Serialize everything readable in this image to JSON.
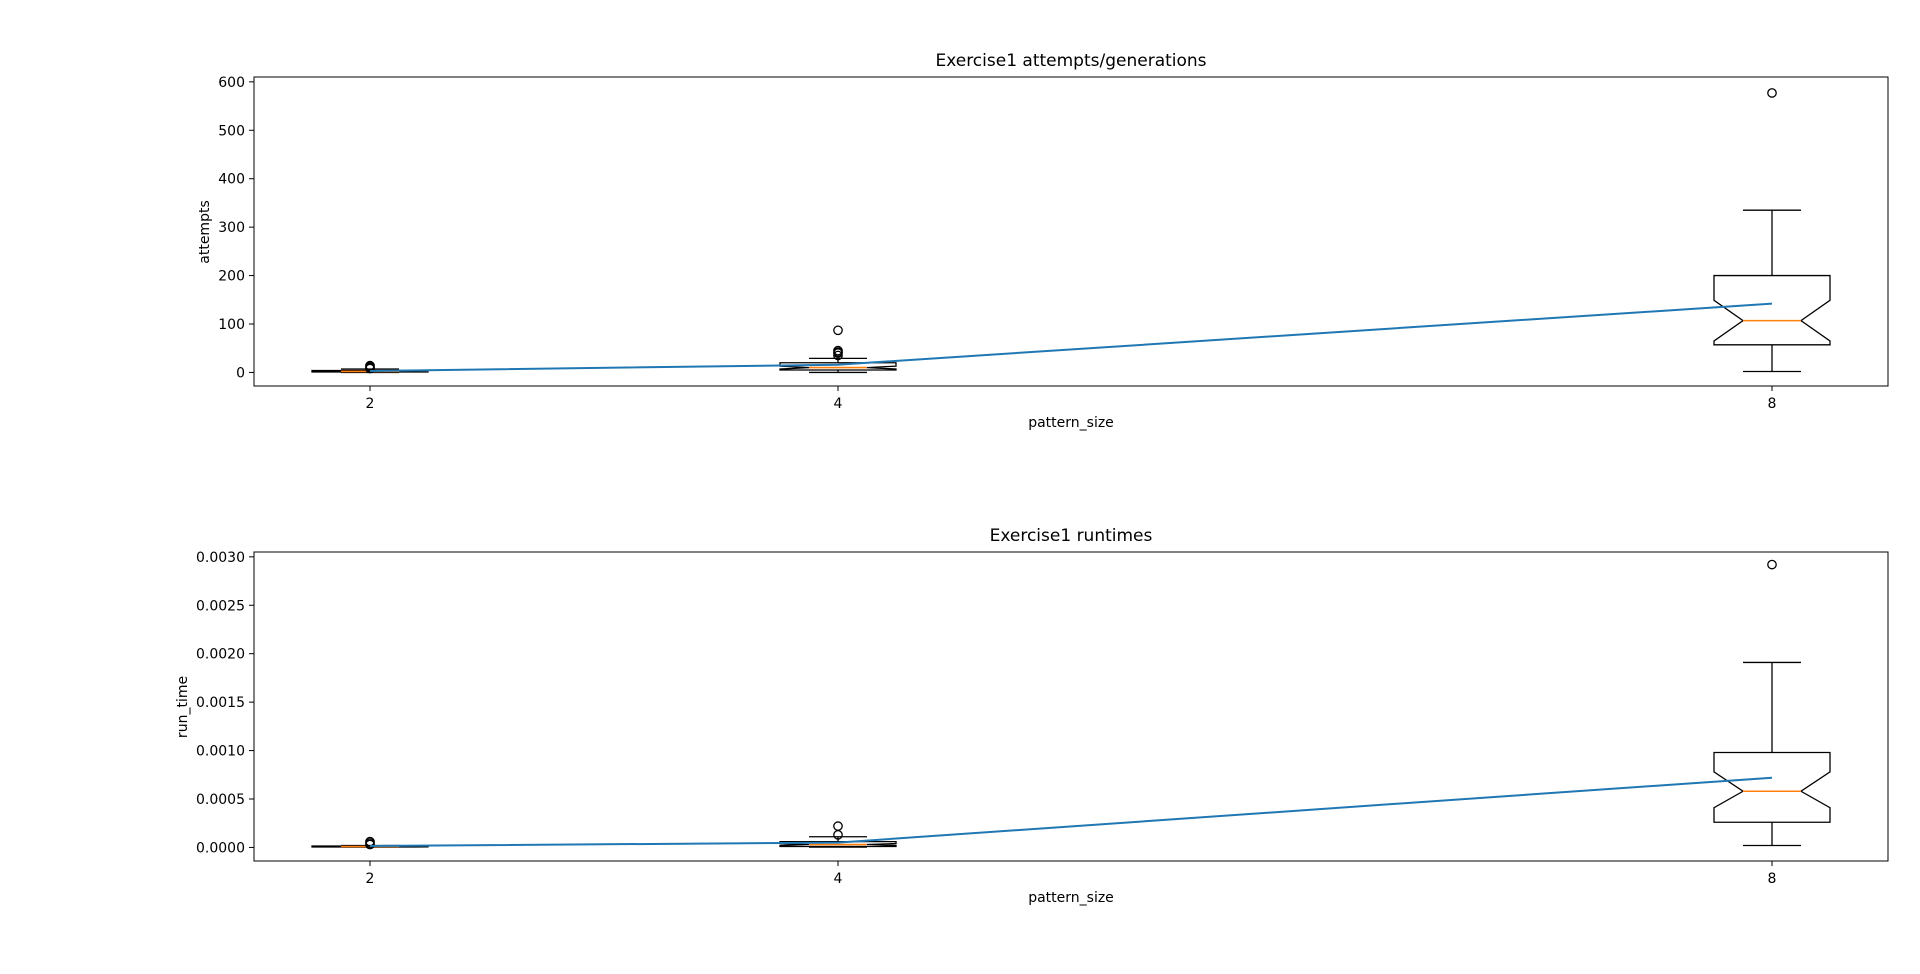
{
  "chart_data": [
    {
      "type": "box",
      "title": "Exercise1 attempts/generations",
      "xlabel": "pattern_size",
      "ylabel": "attempts",
      "categories": [
        "2",
        "4",
        "8"
      ],
      "ylim": [
        -28,
        610
      ],
      "yticks": [
        0,
        100,
        200,
        300,
        400,
        500,
        600
      ],
      "tick_labels": [
        "0",
        "100",
        "200",
        "300",
        "400",
        "500",
        "600"
      ],
      "grid": false,
      "boxes": [
        {
          "category": "2",
          "whislo": 0,
          "q1": 1,
          "median": 2,
          "q3": 4,
          "whishi": 7,
          "notch_lo": 1.6,
          "notch_hi": 2.6,
          "fliers": [
            8,
            10,
            12,
            14
          ]
        },
        {
          "category": "4",
          "whislo": 0,
          "q1": 5,
          "median": 10,
          "q3": 20,
          "whishi": 29,
          "notch_lo": 7,
          "notch_hi": 13,
          "fliers": [
            35,
            40,
            42,
            45,
            87
          ]
        },
        {
          "category": "8",
          "whislo": 2,
          "q1": 57,
          "median": 107,
          "q3": 200,
          "whishi": 335,
          "notch_lo": 65,
          "notch_hi": 149,
          "fliers": [
            577
          ]
        }
      ],
      "series": [
        {
          "values": [
            3,
            16,
            142
          ]
        }
      ]
    },
    {
      "type": "box",
      "title": "Exercise1 runtimes",
      "xlabel": "pattern_size",
      "ylabel": "run_time",
      "categories": [
        "2",
        "4",
        "8"
      ],
      "ylim": [
        -0.00014,
        0.00305
      ],
      "yticks": [
        0,
        0.0005,
        0.001,
        0.0015,
        0.002,
        0.0025,
        0.003
      ],
      "tick_labels": [
        "0.0000",
        "0.0005",
        "0.0010",
        "0.0015",
        "0.0020",
        "0.0025",
        "0.0030"
      ],
      "grid": false,
      "boxes": [
        {
          "category": "2",
          "whislo": 3e-06,
          "q1": 5e-06,
          "median": 9e-06,
          "q3": 1.4e-05,
          "whishi": 2e-05,
          "notch_lo": 7e-06,
          "notch_hi": 1.1e-05,
          "fliers": [
            3e-05,
            4.5e-05,
            6e-05
          ]
        },
        {
          "category": "4",
          "whislo": 3e-06,
          "q1": 1e-05,
          "median": 3e-05,
          "q3": 6e-05,
          "whishi": 0.00011,
          "notch_lo": 2e-05,
          "notch_hi": 4e-05,
          "fliers": [
            0.00013,
            0.00022
          ]
        },
        {
          "category": "8",
          "whislo": 2e-05,
          "q1": 0.00026,
          "median": 0.00058,
          "q3": 0.00098,
          "whishi": 0.00191,
          "notch_lo": 0.00041,
          "notch_hi": 0.00078,
          "fliers": [
            0.00292
          ]
        }
      ],
      "series": [
        {
          "values": [
            1.5e-05,
            5e-05,
            0.00072
          ]
        }
      ]
    }
  ],
  "colors": {
    "box": "#000000",
    "median": "#ff7f0e",
    "line": "#1f77b4"
  }
}
